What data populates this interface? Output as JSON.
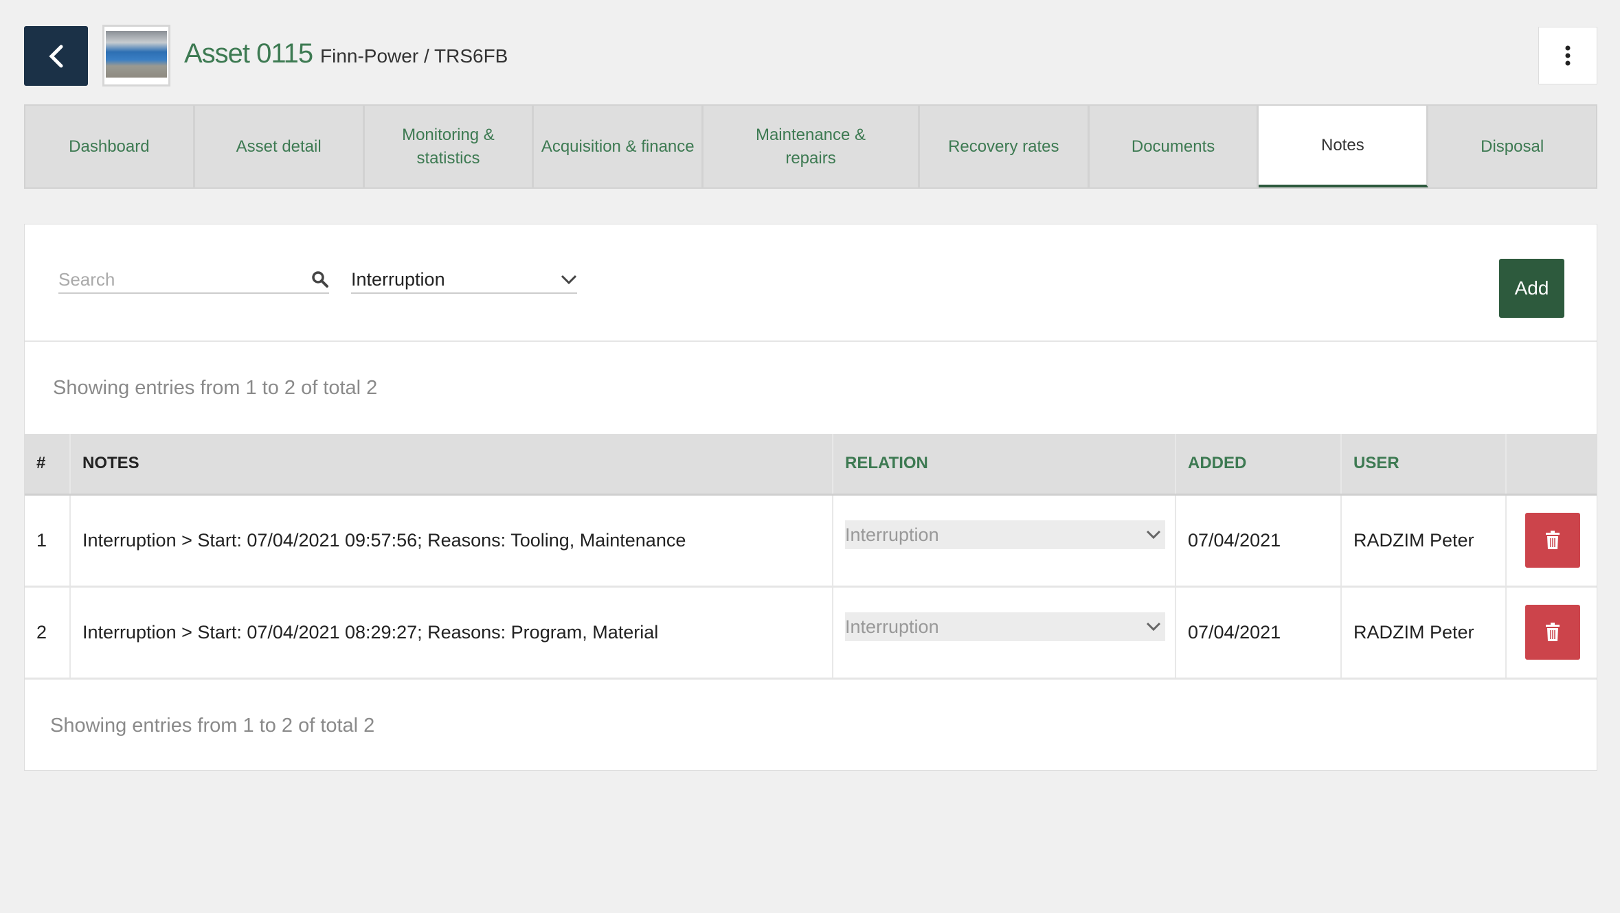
{
  "header": {
    "title": "Asset 0115",
    "subtitle": "Finn-Power / TRS6FB"
  },
  "tabs": [
    {
      "label": "Dashboard"
    },
    {
      "label": "Asset detail"
    },
    {
      "label": "Monitoring & statistics"
    },
    {
      "label": "Acquisition & finance"
    },
    {
      "label": "Maintenance & repairs"
    },
    {
      "label": "Recovery rates"
    },
    {
      "label": "Documents"
    },
    {
      "label": "Notes",
      "active": true
    },
    {
      "label": "Disposal"
    }
  ],
  "toolbar": {
    "search_placeholder": "Search",
    "filter_value": "Interruption",
    "add_label": "Add"
  },
  "summary_top": "Showing entries from 1 to 2 of total 2",
  "summary_bottom": "Showing entries from 1 to 2 of total 2",
  "table": {
    "headers": {
      "num": "#",
      "notes": "NOTES",
      "relation": "RELATION",
      "added": "ADDED",
      "user": "USER"
    },
    "rows": [
      {
        "num": "1",
        "notes": "Interruption > Start: 07/04/2021 09:57:56; Reasons: Tooling, Maintenance",
        "relation": "Interruption",
        "added": "07/04/2021",
        "user": "RADZIM Peter"
      },
      {
        "num": "2",
        "notes": "Interruption > Start: 07/04/2021 08:29:27; Reasons: Program, Material",
        "relation": "Interruption",
        "added": "07/04/2021",
        "user": "RADZIM Peter"
      }
    ]
  },
  "colors": {
    "accent": "#3d7a52",
    "add_button": "#2d5a3d",
    "back_button": "#1b3147",
    "delete": "#cc444b"
  }
}
